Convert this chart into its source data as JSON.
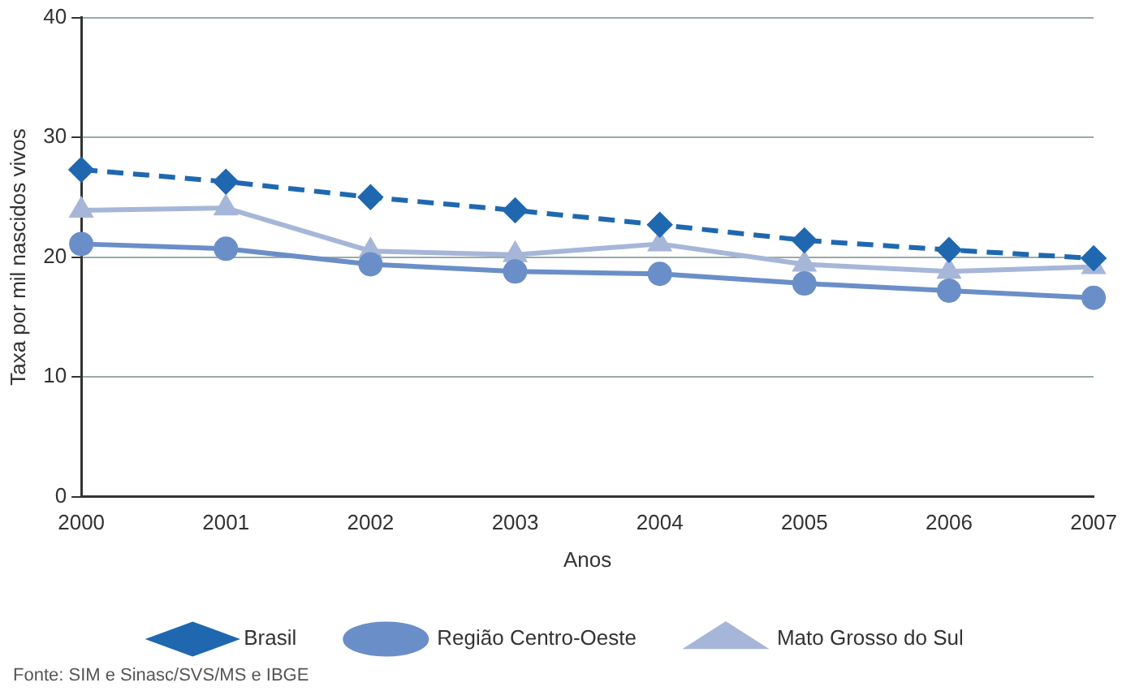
{
  "chart_data": {
    "type": "line",
    "xlabel": "Anos",
    "ylabel": "Taxa por mil nascidos vivos",
    "categories": [
      "2000",
      "2001",
      "2002",
      "2003",
      "2004",
      "2005",
      "2006",
      "2007"
    ],
    "series": [
      {
        "name": "Brasil",
        "color": "#1f68b0",
        "line_style": "dashed",
        "marker": "diamond",
        "values": [
          27.3,
          26.3,
          25.0,
          23.9,
          22.7,
          21.4,
          20.6,
          19.9
        ]
      },
      {
        "name": "Região Centro-Oeste",
        "color": "#6a8ec8",
        "line_style": "solid",
        "marker": "circle",
        "values": [
          21.1,
          20.7,
          19.4,
          18.8,
          18.6,
          17.8,
          17.2,
          16.6
        ]
      },
      {
        "name": "Mato Grosso do Sul",
        "color": "#a6b6d8",
        "line_style": "solid",
        "marker": "triangle",
        "values": [
          23.9,
          24.1,
          20.5,
          20.2,
          21.1,
          19.4,
          18.8,
          19.2
        ]
      }
    ],
    "ylim": [
      0,
      40
    ],
    "yticks": [
      0,
      10,
      20,
      30,
      40
    ],
    "grid": "y",
    "legend": "bottom",
    "annotations": [
      "Fonte: SIM e Sinasc/SVS/MS e IBGE"
    ]
  }
}
